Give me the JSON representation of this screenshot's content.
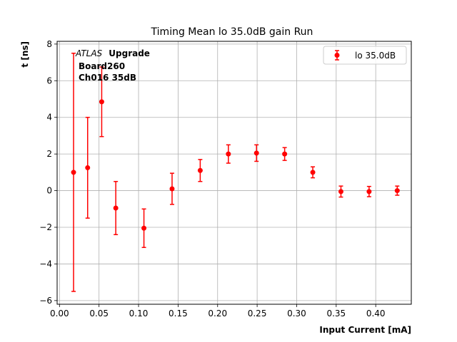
{
  "chart_data": {
    "type": "scatter",
    "title": "Timing Mean lo 35.0dB gain Run",
    "xlabel": "Input Current [mA]",
    "ylabel": "t [ns]",
    "xlim": [
      -0.003,
      0.445
    ],
    "ylim": [
      -6.2,
      8.15
    ],
    "xticks": [
      "0.00",
      "0.05",
      "0.10",
      "0.15",
      "0.20",
      "0.25",
      "0.30",
      "0.35",
      "0.40"
    ],
    "xtick_values": [
      0.0,
      0.05,
      0.1,
      0.15,
      0.2,
      0.25,
      0.3,
      0.35,
      0.4
    ],
    "yticks": [
      "−6",
      "−4",
      "−2",
      "0",
      "2",
      "4",
      "6",
      "8"
    ],
    "ytick_values": [
      -6,
      -4,
      -2,
      0,
      2,
      4,
      6,
      8
    ],
    "grid": true,
    "legend_position": "top-right",
    "annotation": {
      "experiment_italic": "ATLAS",
      "experiment_bold": "Upgrade",
      "line2": "Board260",
      "line3": "Ch016 35dB"
    },
    "series": [
      {
        "name": "lo 35.0dB",
        "color": "#ff0000",
        "marker": "circle",
        "x": [
          0.0178,
          0.0356,
          0.0534,
          0.0712,
          0.1068,
          0.1424,
          0.178,
          0.2136,
          0.2492,
          0.2848,
          0.3204,
          0.356,
          0.3916,
          0.4272
        ],
        "y": [
          1.0,
          1.25,
          4.85,
          -0.95,
          -2.05,
          0.1,
          1.1,
          2.0,
          2.05,
          2.0,
          1.0,
          -0.05,
          -0.05,
          0.0
        ],
        "yerr": [
          6.5,
          2.75,
          1.9,
          1.45,
          1.05,
          0.85,
          0.6,
          0.5,
          0.45,
          0.35,
          0.3,
          0.3,
          0.28,
          0.25
        ]
      }
    ]
  }
}
